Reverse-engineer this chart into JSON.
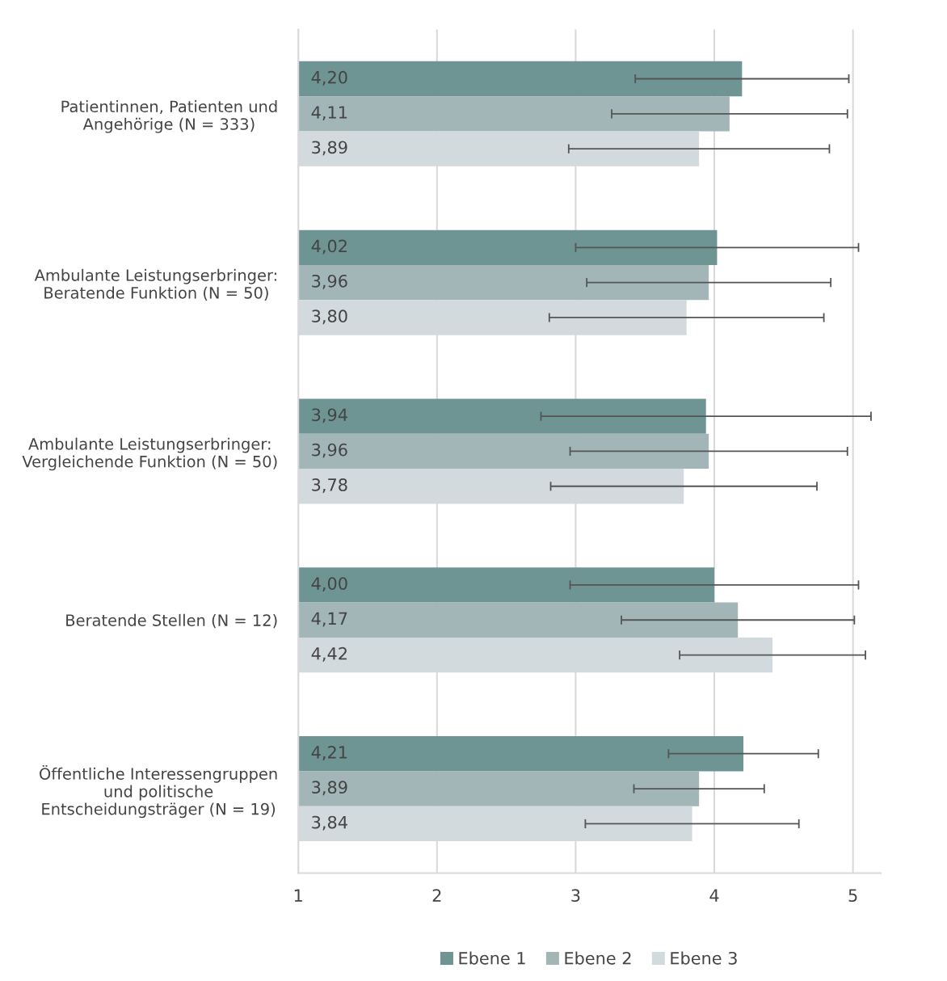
{
  "chart_data": {
    "type": "bar",
    "orientation": "horizontal",
    "categories": [
      "Patientinnen, Patienten und\nAngehörige (N = 333)",
      "Ambulante Leistungserbringer:\nBeratende Funktion (N = 50)",
      "Ambulante Leistungserbringer:\nVergleichende Funktion (N = 50)",
      "Beratende Stellen (N = 12)",
      "Öffentliche Interessengruppen\nund politische\nEntscheidungsträger (N = 19)"
    ],
    "series": [
      {
        "name": "Ebene 1",
        "color": "#6e9494",
        "values": [
          4.2,
          4.02,
          3.94,
          4.0,
          4.21
        ],
        "errors": [
          0.77,
          1.02,
          1.19,
          1.04,
          0.54
        ],
        "value_labels": [
          "4,20",
          "4,02",
          "3,94",
          "4,00",
          "4,21"
        ]
      },
      {
        "name": "Ebene 2",
        "color": "#a2b6b8",
        "values": [
          4.11,
          3.96,
          3.96,
          4.17,
          3.89
        ],
        "errors": [
          0.85,
          0.88,
          1.0,
          0.84,
          0.47
        ],
        "value_labels": [
          "4,11",
          "3,96",
          "3,96",
          "4,17",
          "3,89"
        ]
      },
      {
        "name": "Ebene 3",
        "color": "#d2dadd",
        "values": [
          3.89,
          3.8,
          3.78,
          4.42,
          3.84
        ],
        "errors": [
          0.94,
          0.99,
          0.96,
          0.67,
          0.77
        ],
        "value_labels": [
          "3,89",
          "3,80",
          "3,78",
          "4,42",
          "3,84"
        ]
      }
    ],
    "xlim": [
      1,
      5.2
    ],
    "xticks": [
      1,
      2,
      3,
      4,
      5
    ],
    "grid": "x",
    "legend": "bottom"
  }
}
